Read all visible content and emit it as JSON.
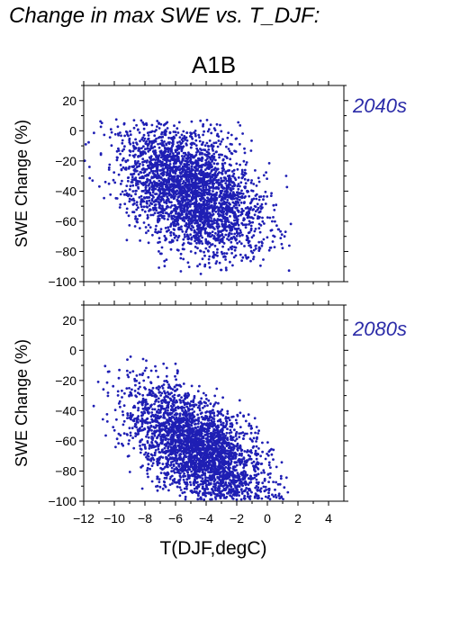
{
  "figure": {
    "title": "Change in max SWE vs. T_DJF:",
    "scenario": "A1B",
    "point_color": "#1f1fb4",
    "period_color": "#2b2ba8"
  },
  "chart_data": [
    {
      "type": "scatter",
      "panel_label": "2040s",
      "xlabel": "",
      "ylabel": "SWE Change (%)",
      "xlim": [
        -12,
        5
      ],
      "ylim": [
        -100,
        30
      ],
      "xticks": [
        -12,
        -10,
        -8,
        -6,
        -4,
        -2,
        0,
        2,
        4
      ],
      "yticks": [
        20,
        0,
        -20,
        -40,
        -60,
        -80,
        -100
      ],
      "x_tick_labels_shown": false,
      "grid": false,
      "point_cloud": {
        "approx_points": 3000,
        "x_range": [
          -12,
          1.7
        ],
        "y_range": [
          -95,
          8
        ],
        "centroid": [
          -4.5,
          -40
        ],
        "trend": "SWE change decreases as T_DJF increases"
      }
    },
    {
      "type": "scatter",
      "panel_label": "2080s",
      "xlabel": "T(DJF,degC)",
      "ylabel": "SWE Change (%)",
      "xlim": [
        -12,
        5
      ],
      "ylim": [
        -100,
        30
      ],
      "xticks": [
        -12,
        -10,
        -8,
        -6,
        -4,
        -2,
        0,
        2,
        4
      ],
      "yticks": [
        20,
        0,
        -20,
        -40,
        -60,
        -80,
        -100
      ],
      "x_tick_labels_shown": true,
      "grid": false,
      "point_cloud": {
        "approx_points": 3000,
        "x_range": [
          -12,
          1.6
        ],
        "y_range": [
          -99,
          -3
        ],
        "centroid": [
          -4,
          -70
        ],
        "trend": "SWE change decreases as T_DJF increases"
      }
    }
  ]
}
